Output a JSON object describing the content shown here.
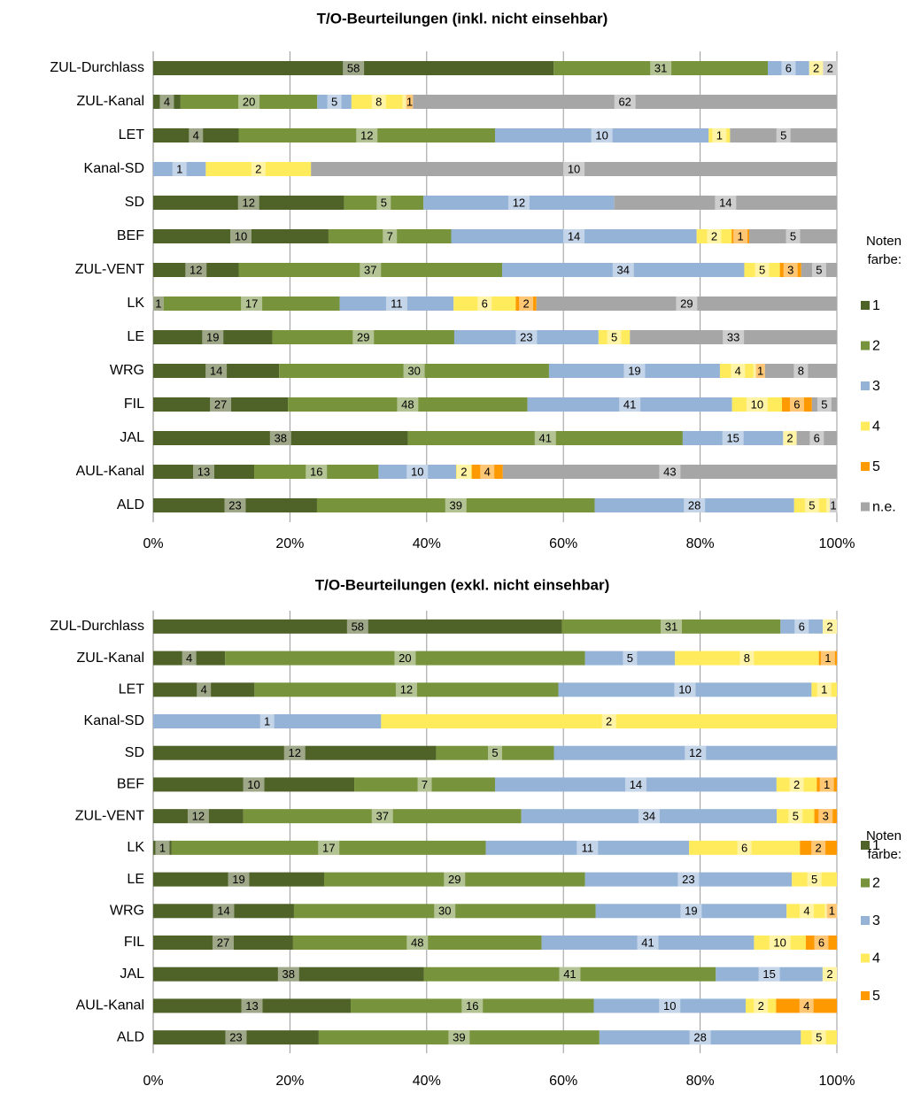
{
  "chart_data": [
    {
      "type": "bar",
      "orientation": "horizontal",
      "stacking": "percent",
      "title": "T/O-Beurteilungen (inkl. nicht einsehbar)",
      "categories": [
        "ZUL-Durchlass",
        "ZUL-Kanal",
        "LET",
        "Kanal-SD",
        "SD",
        "BEF",
        "ZUL-VENT",
        "LK",
        "LE",
        "WRG",
        "FIL",
        "JAL",
        "AUL-Kanal",
        "ALD"
      ],
      "series": [
        {
          "name": "1",
          "color": "#4f6228",
          "values": [
            58,
            4,
            4,
            0,
            12,
            10,
            12,
            1,
            19,
            14,
            27,
            38,
            13,
            23
          ]
        },
        {
          "name": "2",
          "color": "#77933c",
          "values": [
            31,
            20,
            12,
            0,
            5,
            7,
            37,
            17,
            29,
            30,
            48,
            41,
            16,
            39
          ]
        },
        {
          "name": "3",
          "color": "#95b3d7",
          "values": [
            6,
            5,
            10,
            1,
            12,
            14,
            34,
            11,
            23,
            19,
            41,
            15,
            10,
            28
          ]
        },
        {
          "name": "4",
          "color": "#ffeb5b",
          "values": [
            2,
            8,
            1,
            2,
            0,
            2,
            5,
            6,
            5,
            4,
            10,
            2,
            2,
            5
          ]
        },
        {
          "name": "5",
          "color": "#ff9900",
          "values": [
            0,
            1,
            0,
            0,
            0,
            1,
            3,
            2,
            0,
            1,
            6,
            0,
            4,
            0
          ]
        },
        {
          "name": "n.e.",
          "color": "#a6a6a6",
          "values": [
            2,
            62,
            5,
            10,
            14,
            5,
            5,
            29,
            33,
            8,
            5,
            6,
            43,
            1
          ]
        }
      ],
      "xlim": [
        0,
        100
      ],
      "xticks": [
        {
          "value": 0,
          "label": "0%"
        },
        {
          "value": 20,
          "label": "20%"
        },
        {
          "value": 40,
          "label": "40%"
        },
        {
          "value": 60,
          "label": "60%"
        },
        {
          "value": 80,
          "label": "80%"
        },
        {
          "value": 100,
          "label": "100%"
        }
      ],
      "grid": true,
      "legend_title": "Noten farbe:",
      "legend": "right"
    },
    {
      "type": "bar",
      "orientation": "horizontal",
      "stacking": "percent",
      "title": "T/O-Beurteilungen (exkl. nicht einsehbar)",
      "categories": [
        "ZUL-Durchlass",
        "ZUL-Kanal",
        "LET",
        "Kanal-SD",
        "SD",
        "BEF",
        "ZUL-VENT",
        "LK",
        "LE",
        "WRG",
        "FIL",
        "JAL",
        "AUL-Kanal",
        "ALD"
      ],
      "series": [
        {
          "name": "1",
          "color": "#4f6228",
          "values": [
            58,
            4,
            4,
            0,
            12,
            10,
            12,
            1,
            19,
            14,
            27,
            38,
            13,
            23
          ]
        },
        {
          "name": "2",
          "color": "#77933c",
          "values": [
            31,
            20,
            12,
            0,
            5,
            7,
            37,
            17,
            29,
            30,
            48,
            41,
            16,
            39
          ]
        },
        {
          "name": "3",
          "color": "#95b3d7",
          "values": [
            6,
            5,
            10,
            1,
            12,
            14,
            34,
            11,
            23,
            19,
            41,
            15,
            10,
            28
          ]
        },
        {
          "name": "4",
          "color": "#ffeb5b",
          "values": [
            2,
            8,
            1,
            2,
            0,
            2,
            5,
            6,
            5,
            4,
            10,
            2,
            2,
            5
          ]
        },
        {
          "name": "5",
          "color": "#ff9900",
          "values": [
            0,
            1,
            0,
            0,
            0,
            1,
            3,
            2,
            0,
            1,
            6,
            0,
            4,
            0
          ]
        }
      ],
      "xlim": [
        0,
        100
      ],
      "xticks": [
        {
          "value": 0,
          "label": "0%"
        },
        {
          "value": 20,
          "label": "20%"
        },
        {
          "value": 40,
          "label": "40%"
        },
        {
          "value": 60,
          "label": "60%"
        },
        {
          "value": 80,
          "label": "80%"
        },
        {
          "value": 100,
          "label": "100%"
        }
      ],
      "grid": true,
      "legend_title": "Noten farbe:",
      "legend": "right"
    }
  ]
}
